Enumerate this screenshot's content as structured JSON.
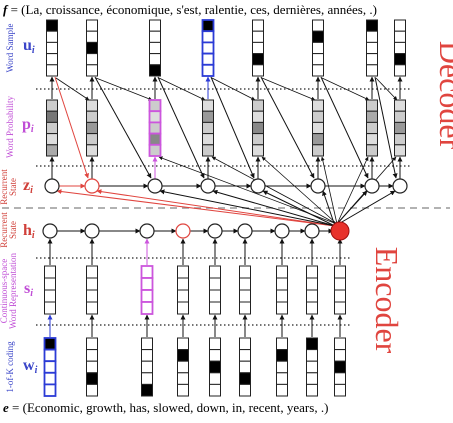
{
  "target_sentence": {
    "symbol": "f",
    "text": " = (La, croissance, économique, s'est, ralentie, ces, dernières, années, .)"
  },
  "source_sentence": {
    "symbol": "e",
    "text": " = (Economic, growth, has, slowed, down, in, recent, years, .)"
  },
  "decoder_title": "Decoder",
  "encoder_title": "Encoder",
  "rows": {
    "word_sample": {
      "side_label": "Word Sample",
      "symbol": "u",
      "subscript": "i"
    },
    "word_probability": {
      "side_label": "Word Probability",
      "symbol": "p",
      "subscript": "i"
    },
    "decoder_state": {
      "side_label_line1": "Recurrent",
      "side_label_line2": "State",
      "symbol": "z",
      "subscript": "i"
    },
    "encoder_state": {
      "side_label_line1": "Recurrent",
      "side_label_line2": "State",
      "symbol": "h",
      "subscript": "i"
    },
    "continuous_repr": {
      "side_label_line1": "Continuous-space",
      "side_label_line2": "Word Representation",
      "symbol": "s",
      "subscript": "i"
    },
    "one_hot": {
      "side_label": "1-of-K coding",
      "symbol": "w",
      "subscript": "i"
    }
  },
  "colors": {
    "decoder_accent": "#e0453f",
    "encoder_accent": "#e0453f",
    "highlight_blue": "#2b3bd6",
    "highlight_violet": "#cc55dd",
    "summary_node": "#e8322c",
    "label_blue": "#3a45c8",
    "label_violet": "#c04dd6",
    "label_red": "#d0403a"
  }
}
